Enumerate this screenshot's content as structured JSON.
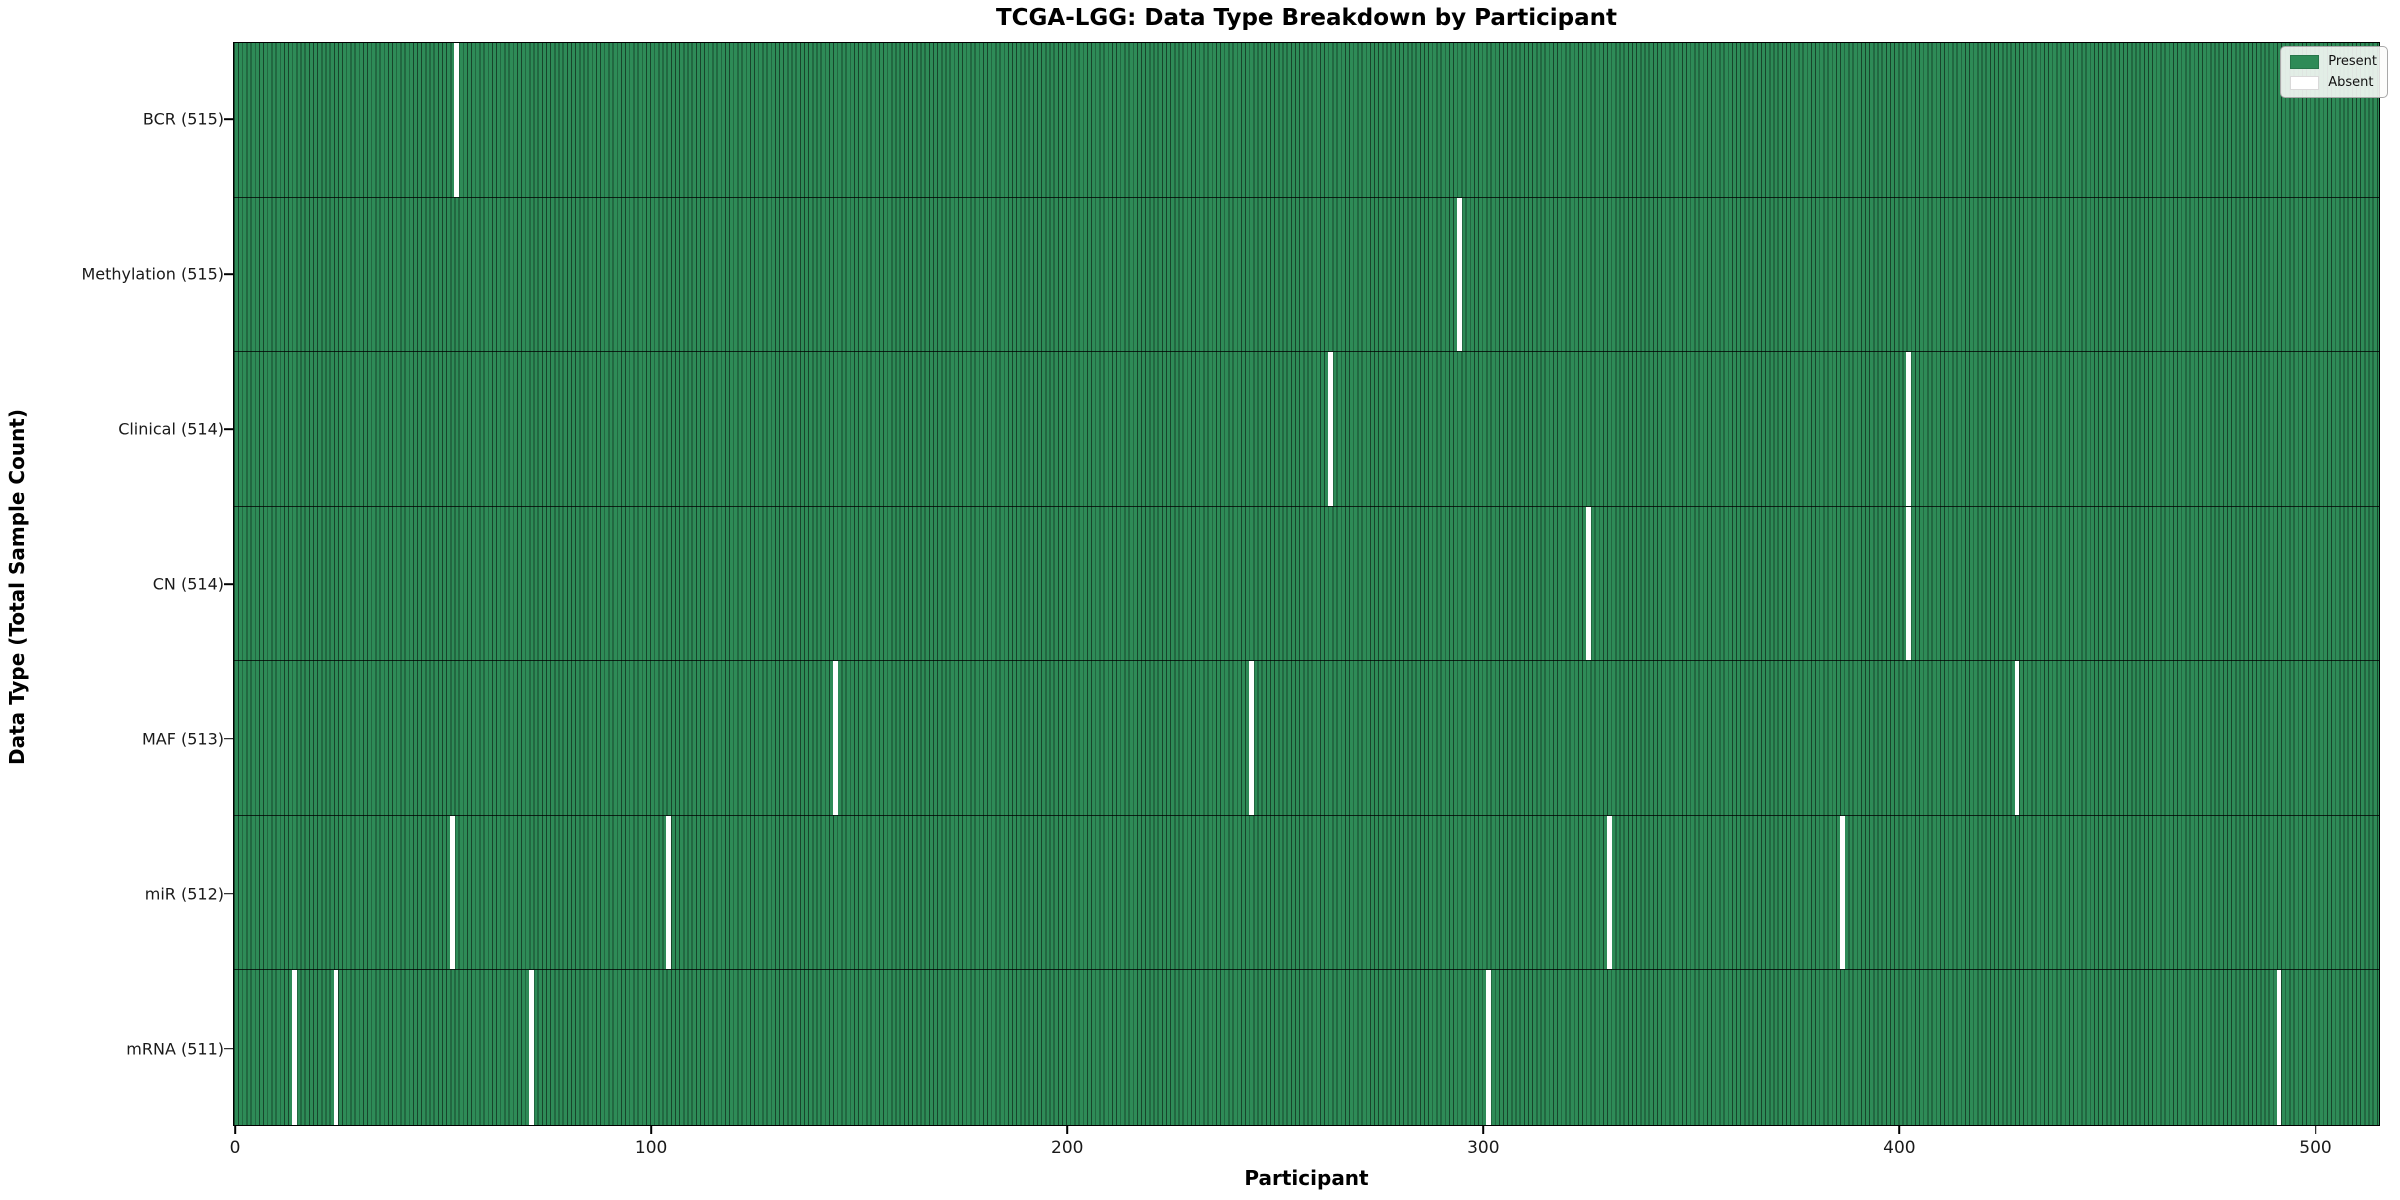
{
  "chart_data": {
    "type": "heatmap",
    "title": "TCGA-LGG: Data Type Breakdown by Participant",
    "xlabel": "Participant",
    "ylabel": "Data Type (Total Sample Count)",
    "present_color": "#2E8B57",
    "absent_color": "#ffffff",
    "total_participants": 516,
    "xlim": [
      -0.5,
      515.5
    ],
    "x_ticks": [
      0,
      100,
      200,
      300,
      400,
      500
    ],
    "x_tick_labels": [
      "0",
      "100",
      "200",
      "300",
      "400",
      "500"
    ],
    "rows": [
      {
        "label": "BCR",
        "count": 515,
        "label_full": "BCR (515)",
        "absent_participants": [
          53
        ]
      },
      {
        "label": "Methylation",
        "count": 515,
        "label_full": "Methylation (515)",
        "absent_participants": [
          294
        ]
      },
      {
        "label": "Clinical",
        "count": 514,
        "label_full": "Clinical (514)",
        "absent_participants": [
          263,
          402
        ]
      },
      {
        "label": "CN",
        "count": 514,
        "label_full": "CN (514)",
        "absent_participants": [
          325,
          402
        ]
      },
      {
        "label": "MAF",
        "count": 513,
        "label_full": "MAF (513)",
        "absent_participants": [
          144,
          244,
          428
        ]
      },
      {
        "label": "miR",
        "count": 512,
        "label_full": "miR (512)",
        "absent_participants": [
          52,
          104,
          330,
          386
        ]
      },
      {
        "label": "mRNA",
        "count": 511,
        "label_full": "mRNA (511)",
        "absent_participants": [
          14,
          24,
          71,
          301,
          491
        ]
      }
    ],
    "legend": {
      "position": "upper right",
      "items": [
        {
          "label": "Present",
          "color": "#2E8B57"
        },
        {
          "label": "Absent",
          "color": "#ffffff"
        }
      ]
    },
    "grid": false
  }
}
